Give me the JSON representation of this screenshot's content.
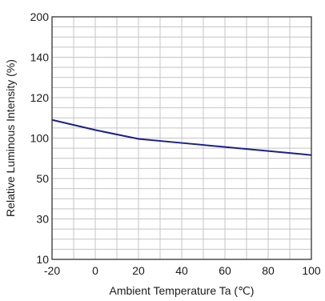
{
  "chart_data": {
    "type": "line",
    "title": "",
    "xlabel": "Ambient Temperature Ta (℃)",
    "ylabel": "Relative Luminous Intensity (%)",
    "x_ticks": [
      -20,
      0,
      20,
      40,
      60,
      80,
      100
    ],
    "y_ticks": [
      10,
      30,
      50,
      100,
      120,
      140,
      200
    ],
    "xlim": [
      -20,
      100
    ],
    "ylim": [
      10,
      200
    ],
    "grid": true,
    "series": [
      {
        "color": "#1a1f8c",
        "x": [
          -20,
          0,
          20,
          40,
          60,
          80,
          100
        ],
        "y": [
          109,
          104,
          99,
          94,
          89,
          84,
          79
        ]
      }
    ]
  }
}
